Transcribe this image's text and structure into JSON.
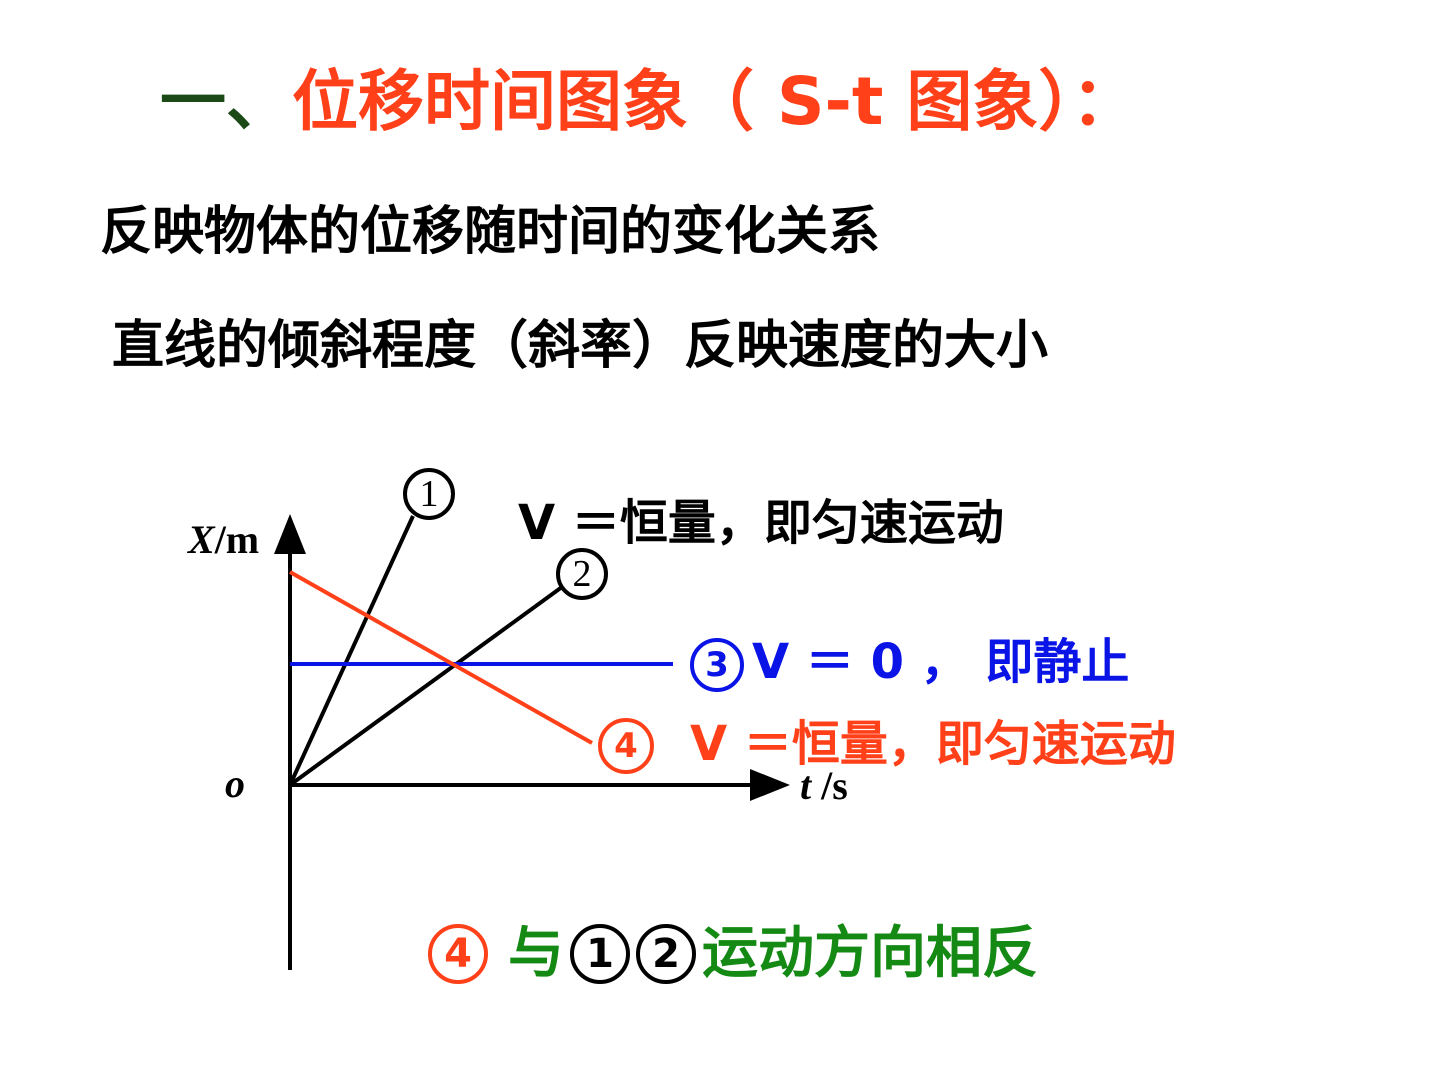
{
  "title": {
    "number": "一、",
    "text": "位移时间图象（ S-t 图象）："
  },
  "lines": [
    "反映物体的位移随时间的变化关系",
    "直线的倾斜程度（斜率）反映速度的大小"
  ],
  "diagram": {
    "y_axis_label_var": "X",
    "y_axis_label_unit": "/m",
    "x_axis_label_var": "t",
    "x_axis_label_unit": " /s",
    "origin_label": "o",
    "markers": {
      "m1": "1",
      "m2": "2",
      "m3": "3",
      "m4": "4"
    },
    "label_1_2": "V ＝恒量，即匀速运动",
    "label_3": "V ＝ 0 ， 即静止",
    "label_4": "V ＝恒量，即匀速运动"
  },
  "conclusion": {
    "m4": "4",
    "text1": "与",
    "m1": "1",
    "m2": "2",
    "text2": "运动方向相反"
  },
  "colors": {
    "title_number": "#1b4a17",
    "title": "#ff4019",
    "black": "#000000",
    "blue": "#0a14e6",
    "red": "#ff4019",
    "green": "#148a14"
  }
}
